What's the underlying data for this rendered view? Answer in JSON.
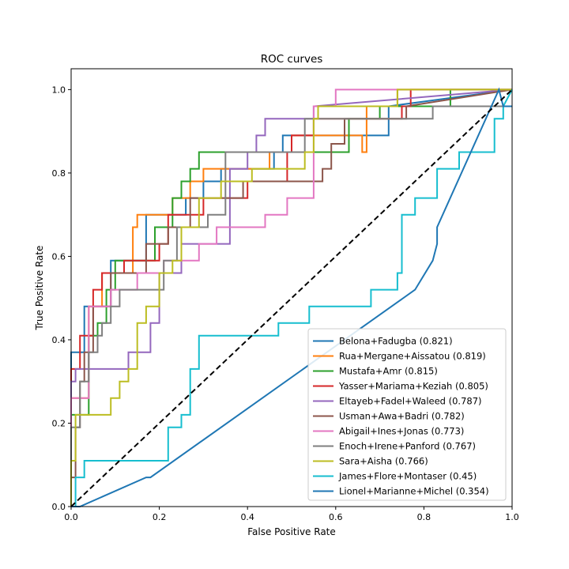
{
  "chart_data": {
    "type": "line",
    "title": "ROC curves",
    "xlabel": "False Positive Rate",
    "ylabel": "True Positive Rate",
    "xlim": [
      0,
      1
    ],
    "ylim": [
      0,
      1.05
    ],
    "xticks": [
      "0.0",
      "0.2",
      "0.4",
      "0.6",
      "0.8",
      "1.0"
    ],
    "yticks": [
      "0.0",
      "0.2",
      "0.4",
      "0.6",
      "0.8",
      "1.0"
    ],
    "legend_position": "lower-right",
    "diagonal": {
      "x": [
        0,
        1
      ],
      "y": [
        0,
        1
      ],
      "color": "#000000",
      "style": "dashed"
    },
    "series": [
      {
        "name": "Belona+Fadugba (0.821)",
        "color": "#1f77b4",
        "x": [
          0,
          0,
          0.03,
          0.03,
          0.09,
          0.09,
          0.17,
          0.17,
          0.26,
          0.26,
          0.3,
          0.3,
          0.34,
          0.34,
          0.46,
          0.46,
          0.48,
          0.48,
          0.6,
          0.6,
          0.72,
          0.72,
          1
        ],
        "y": [
          0,
          0.37,
          0.37,
          0.48,
          0.48,
          0.59,
          0.59,
          0.7,
          0.7,
          0.74,
          0.74,
          0.78,
          0.78,
          0.81,
          0.81,
          0.85,
          0.85,
          0.89,
          0.89,
          0.89,
          0.89,
          0.96,
          1
        ]
      },
      {
        "name": "Rua+Mergane+Aissatou (0.819)",
        "color": "#ff7f0e",
        "x": [
          0,
          0,
          0.04,
          0.04,
          0.07,
          0.07,
          0.14,
          0.14,
          0.15,
          0.15,
          0.23,
          0.23,
          0.27,
          0.27,
          0.3,
          0.3,
          0.45,
          0.45,
          0.5,
          0.5,
          0.66,
          0.66,
          0.67,
          0.67,
          0.74,
          0.74,
          1
        ],
        "y": [
          0,
          0.26,
          0.26,
          0.48,
          0.48,
          0.56,
          0.56,
          0.67,
          0.67,
          0.7,
          0.7,
          0.74,
          0.74,
          0.78,
          0.78,
          0.81,
          0.81,
          0.85,
          0.85,
          0.89,
          0.89,
          0.85,
          0.85,
          0.96,
          0.96,
          1,
          1
        ]
      },
      {
        "name": "Mustafa+Amr (0.815)",
        "color": "#2ca02c",
        "x": [
          0,
          0,
          0.04,
          0.04,
          0.06,
          0.06,
          0.08,
          0.08,
          0.1,
          0.1,
          0.13,
          0.13,
          0.19,
          0.19,
          0.23,
          0.23,
          0.25,
          0.25,
          0.27,
          0.27,
          0.29,
          0.29,
          0.36,
          0.36,
          0.63,
          0.63,
          0.7,
          0.7,
          0.86,
          0.86,
          0.88,
          0.88,
          1
        ],
        "y": [
          0,
          0.22,
          0.22,
          0.41,
          0.41,
          0.44,
          0.44,
          0.52,
          0.52,
          0.59,
          0.59,
          0.59,
          0.59,
          0.67,
          0.67,
          0.74,
          0.74,
          0.78,
          0.78,
          0.81,
          0.81,
          0.85,
          0.85,
          0.85,
          0.85,
          0.93,
          0.93,
          0.96,
          0.96,
          1,
          1,
          1,
          1
        ]
      },
      {
        "name": "Yasser+Mariama+Keziah (0.805)",
        "color": "#d62728",
        "x": [
          0,
          0,
          0.02,
          0.02,
          0.05,
          0.05,
          0.07,
          0.07,
          0.12,
          0.12,
          0.2,
          0.2,
          0.22,
          0.22,
          0.3,
          0.3,
          0.4,
          0.4,
          0.49,
          0.49,
          0.5,
          0.5,
          0.55,
          0.55,
          0.75,
          0.75,
          0.77,
          0.77,
          0.86,
          0.86,
          1
        ],
        "y": [
          0,
          0.33,
          0.33,
          0.41,
          0.41,
          0.52,
          0.52,
          0.56,
          0.56,
          0.59,
          0.59,
          0.63,
          0.63,
          0.7,
          0.7,
          0.74,
          0.74,
          0.78,
          0.78,
          0.85,
          0.85,
          0.89,
          0.89,
          0.93,
          0.93,
          0.96,
          0.96,
          1,
          1,
          1,
          1
        ]
      },
      {
        "name": "Eltayeb+Fadel+Waleed (0.787)",
        "color": "#9467bd",
        "x": [
          0,
          0,
          0.01,
          0.01,
          0.04,
          0.04,
          0.13,
          0.13,
          0.18,
          0.18,
          0.2,
          0.2,
          0.25,
          0.25,
          0.36,
          0.36,
          0.4,
          0.4,
          0.42,
          0.42,
          0.44,
          0.44,
          0.55,
          0.55,
          1
        ],
        "y": [
          0,
          0.3,
          0.3,
          0.33,
          0.33,
          0.33,
          0.33,
          0.37,
          0.37,
          0.44,
          0.44,
          0.56,
          0.56,
          0.63,
          0.63,
          0.81,
          0.81,
          0.85,
          0.85,
          0.89,
          0.89,
          0.93,
          0.93,
          0.96,
          1
        ]
      },
      {
        "name": "Usman+Awa+Badri (0.782)",
        "color": "#8c564b",
        "x": [
          0,
          0,
          0.01,
          0.01,
          0.02,
          0.02,
          0.03,
          0.03,
          0.05,
          0.05,
          0.09,
          0.09,
          0.17,
          0.17,
          0.22,
          0.22,
          0.27,
          0.27,
          0.39,
          0.39,
          0.52,
          0.52,
          0.57,
          0.57,
          0.59,
          0.59,
          0.62,
          0.62,
          0.76,
          0.76,
          1
        ],
        "y": [
          0,
          0.07,
          0.07,
          0.19,
          0.19,
          0.3,
          0.3,
          0.37,
          0.37,
          0.48,
          0.48,
          0.56,
          0.56,
          0.63,
          0.63,
          0.67,
          0.67,
          0.74,
          0.74,
          0.78,
          0.78,
          0.78,
          0.78,
          0.81,
          0.81,
          0.87,
          0.87,
          0.93,
          0.93,
          0.96,
          1
        ]
      },
      {
        "name": "Abigail+Ines+Jonas (0.773)",
        "color": "#e377c2",
        "x": [
          0,
          0,
          0.04,
          0.04,
          0.09,
          0.09,
          0.15,
          0.15,
          0.21,
          0.21,
          0.29,
          0.29,
          0.33,
          0.33,
          0.44,
          0.44,
          0.49,
          0.49,
          0.55,
          0.55,
          0.6,
          0.6,
          1
        ],
        "y": [
          0,
          0.26,
          0.26,
          0.48,
          0.48,
          0.52,
          0.52,
          0.56,
          0.56,
          0.59,
          0.59,
          0.63,
          0.63,
          0.67,
          0.67,
          0.7,
          0.7,
          0.74,
          0.74,
          0.96,
          0.96,
          1,
          1
        ]
      },
      {
        "name": "Enoch+Irene+Panford (0.767)",
        "color": "#7f7f7f",
        "x": [
          0,
          0,
          0.02,
          0.02,
          0.04,
          0.04,
          0.06,
          0.06,
          0.07,
          0.07,
          0.09,
          0.09,
          0.11,
          0.11,
          0.21,
          0.21,
          0.24,
          0.24,
          0.31,
          0.31,
          0.35,
          0.35,
          0.53,
          0.53,
          0.82,
          0.82,
          1
        ],
        "y": [
          0,
          0.19,
          0.19,
          0.3,
          0.3,
          0.37,
          0.37,
          0.41,
          0.41,
          0.44,
          0.44,
          0.48,
          0.48,
          0.52,
          0.52,
          0.59,
          0.59,
          0.67,
          0.67,
          0.7,
          0.7,
          0.85,
          0.85,
          0.93,
          0.93,
          0.96,
          0.96
        ]
      },
      {
        "name": "Sara+Aisha (0.766)",
        "color": "#bcbd22",
        "x": [
          0,
          0,
          0.01,
          0.01,
          0.09,
          0.09,
          0.11,
          0.11,
          0.13,
          0.13,
          0.15,
          0.15,
          0.17,
          0.17,
          0.2,
          0.2,
          0.23,
          0.23,
          0.25,
          0.25,
          0.29,
          0.29,
          0.34,
          0.34,
          0.41,
          0.41,
          0.53,
          0.53,
          0.55,
          0.55,
          0.56,
          0.56,
          0.74,
          0.74,
          1
        ],
        "y": [
          0,
          0.11,
          0.11,
          0.22,
          0.22,
          0.26,
          0.26,
          0.3,
          0.3,
          0.33,
          0.33,
          0.44,
          0.44,
          0.48,
          0.48,
          0.56,
          0.56,
          0.59,
          0.59,
          0.67,
          0.67,
          0.74,
          0.74,
          0.78,
          0.78,
          0.81,
          0.81,
          0.85,
          0.85,
          0.93,
          0.93,
          0.96,
          0.96,
          1,
          1
        ]
      },
      {
        "name": "James+Flore+Montaser (0.45)",
        "color": "#17becf",
        "x": [
          0.01,
          0.01,
          0.03,
          0.03,
          0.22,
          0.22,
          0.25,
          0.25,
          0.27,
          0.27,
          0.29,
          0.29,
          0.47,
          0.47,
          0.54,
          0.54,
          0.68,
          0.68,
          0.74,
          0.74,
          0.75,
          0.75,
          0.78,
          0.78,
          0.83,
          0.83,
          0.88,
          0.88,
          0.96,
          0.96,
          0.98,
          0.98,
          1
        ],
        "y": [
          0,
          0.07,
          0.07,
          0.11,
          0.11,
          0.19,
          0.19,
          0.22,
          0.22,
          0.33,
          0.33,
          0.41,
          0.41,
          0.44,
          0.44,
          0.48,
          0.48,
          0.52,
          0.52,
          0.56,
          0.56,
          0.7,
          0.7,
          0.74,
          0.74,
          0.81,
          0.81,
          0.85,
          0.85,
          0.93,
          0.93,
          0.96,
          1
        ]
      },
      {
        "name": "Lionel+Marianne+Michel (0.354)",
        "color": "#1f77b4",
        "x": [
          0,
          0.02,
          0.17,
          0.18,
          0.78,
          0.82,
          0.83,
          0.83,
          0.97,
          0.98,
          1
        ],
        "y": [
          0,
          0,
          0.07,
          0.07,
          0.52,
          0.59,
          0.63,
          0.67,
          1,
          0.96,
          0.96
        ]
      }
    ]
  }
}
